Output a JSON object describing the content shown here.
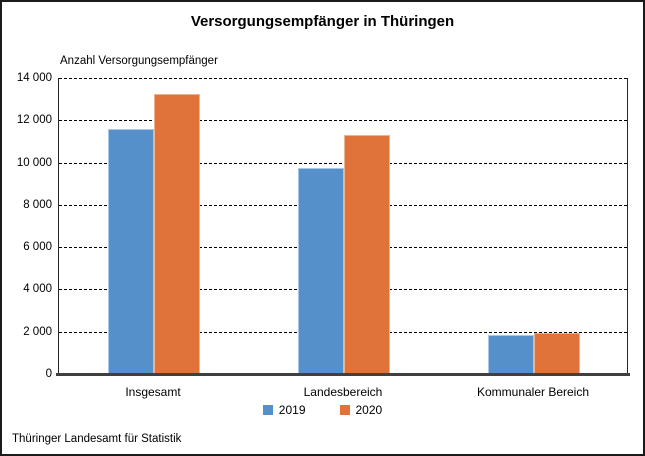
{
  "title": "Versorgungsempfänger in Thüringen",
  "axis_title": "Anzahl Versorgungsempfänger",
  "source": "Thüringer Landesamt für Statistik",
  "colors": {
    "series_2019_fill": "#5590CB",
    "series_2019_edge": "#A9C7E8",
    "series_2020_fill": "#E0733A",
    "series_2020_edge": "#EFB28E",
    "gridline": "#000000",
    "axis_line": "#404040"
  },
  "chart_data": {
    "type": "bar",
    "title": "Versorgungsempfänger in Thüringen",
    "xlabel": "",
    "ylabel": "Anzahl Versorgungsempfänger",
    "categories": [
      "Insgesamt",
      "Landesbereich",
      "Kommunaler Bereich"
    ],
    "series": [
      {
        "name": "2019",
        "color": "#5590CB",
        "edge": "#A9C7E8",
        "values": [
          11600,
          9750,
          1850
        ]
      },
      {
        "name": "2020",
        "color": "#E0733A",
        "edge": "#EFB28E",
        "values": [
          13250,
          11300,
          1950
        ]
      }
    ],
    "ylim": [
      0,
      14000
    ],
    "ytick_step": 2000,
    "ytick_labels": [
      "0",
      "2 000",
      "4 000",
      "6 000",
      "8 000",
      "10 000",
      "12 000",
      "14 000"
    ],
    "grid": "horizontal-dashed",
    "legend_position": "bottom"
  }
}
